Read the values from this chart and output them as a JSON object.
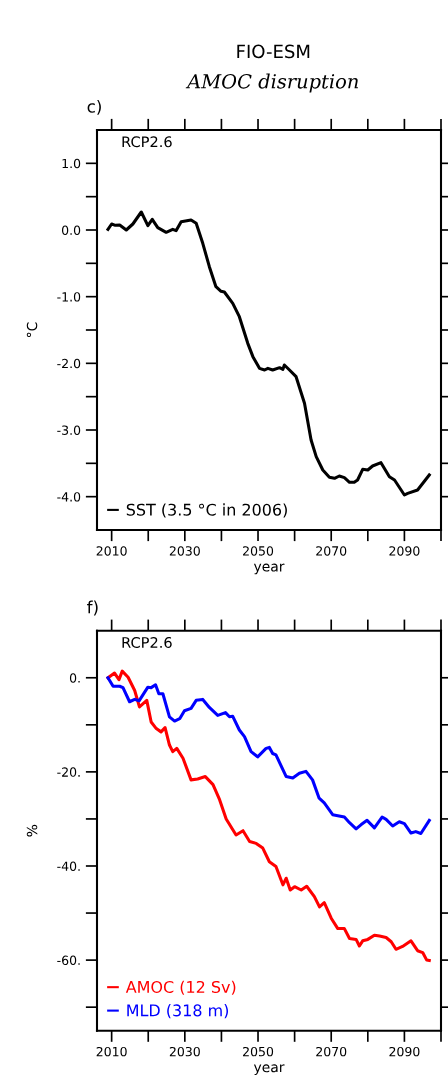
{
  "chart_data": [
    {
      "type": "line",
      "title": "FIO-ESM",
      "subtitle": "AMOC disruption",
      "annotations": [
        "c)",
        "RCP2.6"
      ],
      "xlabel": "year",
      "ylabel": "°C",
      "xlim": [
        2006,
        2100
      ],
      "xticks": [
        2010,
        {
          "value": 2020,
          "label": null
        },
        2030,
        {
          "value": 2040,
          "label": null
        },
        2050,
        {
          "value": 2060,
          "label": null
        },
        2070,
        {
          "value": 2080,
          "label": null
        },
        2090,
        {
          "value": 2100,
          "label": null
        }
      ],
      "ylim": [
        -4.5,
        1.5
      ],
      "yticks": [
        {
          "value": -4.0,
          "label": "-4.0"
        },
        {
          "value": -3.5,
          "label": null
        },
        {
          "value": -3.0,
          "label": "-3.0"
        },
        {
          "value": -2.5,
          "label": null
        },
        {
          "value": -2.0,
          "label": "-2.0"
        },
        {
          "value": -1.5,
          "label": null
        },
        {
          "value": -1.0,
          "label": "-1.0"
        },
        {
          "value": -0.5,
          "label": null
        },
        {
          "value": 0.0,
          "label": "0.0"
        },
        {
          "value": 0.5,
          "label": null
        },
        {
          "value": 1.0,
          "label": "1.0"
        }
      ],
      "grid": false,
      "legend": "bottom left",
      "series": [
        {
          "name": "SST (3.5 °C in 2006)",
          "color": "#000000",
          "x": [
            2009,
            2010,
            2011,
            2012.2,
            2014,
            2015.8,
            2018.1,
            2019.9,
            2021.1,
            2022.6,
            2024.9,
            2026.7,
            2027.6,
            2029,
            2031.7,
            2033.1,
            2034.9,
            2036.7,
            2038.5,
            2039.9,
            2040.8,
            2043.1,
            2044.9,
            2047.2,
            2048.6,
            2050.4,
            2051.8,
            2052.7,
            2054,
            2055.9,
            2056.8,
            2057.2,
            2058.6,
            2060.4,
            2062.7,
            2064.5,
            2065.9,
            2067.7,
            2069.5,
            2070.9,
            2072.2,
            2073.6,
            2075,
            2076.3,
            2077.2,
            2078.6,
            2080,
            2081.3,
            2083.6,
            2085.9,
            2087.3,
            2090,
            2090.9,
            2093.6,
            2096.8
          ],
          "values": [
            0.01,
            0.09,
            0.07,
            0.075,
            0.0,
            0.09,
            0.27,
            0.065,
            0.16,
            0.035,
            -0.035,
            0.01,
            -0.01,
            0.125,
            0.15,
            0.1,
            -0.2,
            -0.55,
            -0.85,
            -0.92,
            -0.93,
            -1.1,
            -1.3,
            -1.7,
            -1.9,
            -2.075,
            -2.1,
            -2.075,
            -2.1,
            -2.065,
            -2.09,
            -2.025,
            -2.1,
            -2.2,
            -2.6,
            -3.15,
            -3.4,
            -3.6,
            -3.71,
            -3.725,
            -3.69,
            -3.715,
            -3.785,
            -3.785,
            -3.75,
            -3.59,
            -3.6,
            -3.54,
            -3.49,
            -3.7,
            -3.75,
            -3.975,
            -3.95,
            -3.9,
            -3.675
          ]
        }
      ]
    },
    {
      "type": "line",
      "annotations": [
        "f)",
        "RCP2.6"
      ],
      "xlabel": "year",
      "ylabel": "%",
      "xlim": [
        2006,
        2100
      ],
      "xticks": [
        2010,
        {
          "value": 2020,
          "label": null
        },
        2030,
        {
          "value": 2040,
          "label": null
        },
        2050,
        {
          "value": 2060,
          "label": null
        },
        2070,
        {
          "value": 2080,
          "label": null
        },
        2090,
        {
          "value": 2100,
          "label": null
        }
      ],
      "ylim": [
        -75,
        10
      ],
      "yticks": [
        {
          "value": -70,
          "label": null
        },
        {
          "value": -60,
          "label": "-60."
        },
        {
          "value": -50,
          "label": null
        },
        {
          "value": -40,
          "label": "-40."
        },
        {
          "value": -30,
          "label": null
        },
        {
          "value": -20,
          "label": "-20."
        },
        {
          "value": -10,
          "label": null
        },
        {
          "value": 0,
          "label": "0."
        }
      ],
      "grid": false,
      "legend": "bottom left",
      "series": [
        {
          "name": "AMOC (12 Sv)",
          "color": "#ff0000",
          "x": [
            2009,
            2010.8,
            2012,
            2012.9,
            2014.5,
            2016.3,
            2017.6,
            2018.6,
            2019.6,
            2020.8,
            2022.2,
            2023.5,
            2024.6,
            2025.8,
            2026.7,
            2027.8,
            2029.5,
            2031.7,
            2033.5,
            2035.6,
            2037.7,
            2039.5,
            2041.3,
            2044,
            2045.9,
            2047.7,
            2049.5,
            2051.3,
            2053.1,
            2054.9,
            2056.8,
            2057.7,
            2058.8,
            2060,
            2061.8,
            2063.3,
            2065.4,
            2066.8,
            2068.1,
            2070,
            2071.8,
            2073.6,
            2075,
            2076.8,
            2077.7,
            2078.6,
            2080,
            2081.8,
            2083.2,
            2085,
            2086.4,
            2087.7,
            2089.5,
            2091.8,
            2093.6,
            2095,
            2096.1,
            2096.8
          ],
          "values": [
            0,
            1.0,
            -0.4,
            1.4,
            0.1,
            -2.7,
            -6.2,
            -5.5,
            -4.8,
            -9.4,
            -10.8,
            -11.5,
            -10.6,
            -14.3,
            -15.7,
            -15,
            -17.1,
            -21.7,
            -21.5,
            -21,
            -22.7,
            -25.9,
            -30,
            -33.4,
            -32.5,
            -34.8,
            -35.2,
            -36.2,
            -39.1,
            -40.1,
            -44,
            -42.6,
            -45.1,
            -44.4,
            -45.1,
            -44.3,
            -46.5,
            -48.7,
            -47.8,
            -51.1,
            -53.3,
            -53.3,
            -55.4,
            -55.6,
            -57,
            -55.9,
            -55.6,
            -54.7,
            -54.9,
            -55.2,
            -56.1,
            -57.7,
            -57.1,
            -55.9,
            -58,
            -58.4,
            -60,
            -60.1
          ]
        },
        {
          "name": "MLD (318 m)",
          "color": "#0000ff",
          "x": [
            2009,
            2010.4,
            2012.2,
            2013.1,
            2014.9,
            2016.3,
            2017.5,
            2019.9,
            2020.8,
            2022,
            2022.9,
            2024,
            2025.8,
            2027.2,
            2028.6,
            2029.9,
            2031.7,
            2033.1,
            2034.9,
            2036.7,
            2039,
            2041.1,
            2042.2,
            2043.1,
            2044.9,
            2046.3,
            2048.1,
            2049.9,
            2052.2,
            2053.1,
            2054,
            2054.9,
            2057.7,
            2059.5,
            2061.3,
            2063.1,
            2064.9,
            2066.7,
            2068.1,
            2070.4,
            2071.8,
            2073.6,
            2075,
            2076.8,
            2078.2,
            2079.8,
            2081.8,
            2083.9,
            2085,
            2086.8,
            2088.6,
            2090,
            2091.8,
            2093.1,
            2094.5,
            2096.8
          ],
          "values": [
            0,
            -1.8,
            -1.8,
            -2.1,
            -5.1,
            -4.6,
            -4.9,
            -2,
            -2.1,
            -1.5,
            -3.4,
            -3.4,
            -8.3,
            -9.2,
            -8.7,
            -7,
            -6.5,
            -4.8,
            -4.6,
            -6.3,
            -8,
            -7.4,
            -8.3,
            -8.2,
            -11.1,
            -12.5,
            -15.7,
            -16.8,
            -15,
            -14.8,
            -16.1,
            -16.4,
            -21,
            -21.3,
            -20.3,
            -19.9,
            -21.7,
            -25.6,
            -26.6,
            -29.1,
            -29.3,
            -29.6,
            -30.8,
            -32.1,
            -31.2,
            -30.3,
            -31.9,
            -29.6,
            -30.1,
            -31.5,
            -30.6,
            -31,
            -33,
            -32.7,
            -33.1,
            -30.3
          ]
        }
      ]
    }
  ]
}
